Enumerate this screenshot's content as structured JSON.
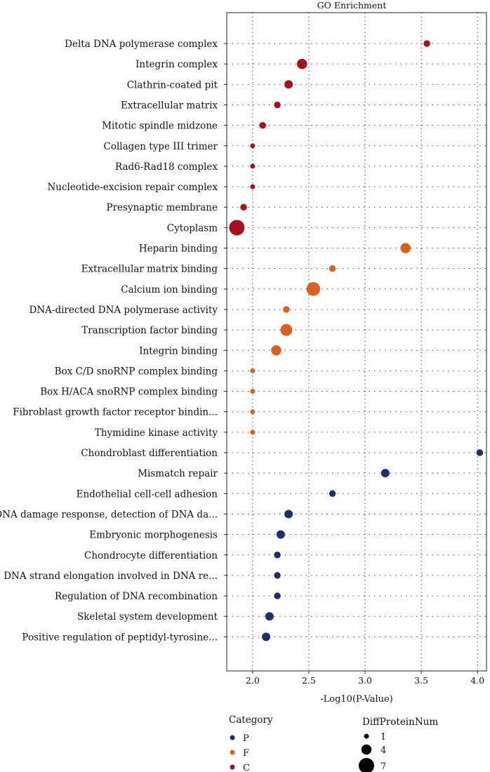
{
  "chart_data": {
    "type": "scatter",
    "title": "GO Enrichment",
    "xlabel": "-Log10(P-Value)",
    "ylabel": "",
    "xlim": [
      1.77,
      4.08
    ],
    "xticks": [
      2.0,
      2.5,
      3.0,
      3.5,
      4.0
    ],
    "xtick_labels": [
      "2.0",
      "2.5",
      "3.0",
      "3.5",
      "4.0"
    ],
    "grid": true,
    "colors": {
      "P": "#1a2f6b",
      "F": "#d9621f",
      "C": "#a5121e"
    },
    "terms": [
      {
        "label": "Delta DNA polymerase complex",
        "category": "C",
        "x": 3.55,
        "size": 2
      },
      {
        "label": "Integrin complex",
        "category": "C",
        "x": 2.44,
        "size": 4
      },
      {
        "label": "Clathrin-coated pit",
        "category": "C",
        "x": 2.32,
        "size": 3
      },
      {
        "label": "Extracellular matrix",
        "category": "C",
        "x": 2.22,
        "size": 2
      },
      {
        "label": "Mitotic spindle midzone",
        "category": "C",
        "x": 2.09,
        "size": 2
      },
      {
        "label": "Collagen type III trimer",
        "category": "C",
        "x": 2.0,
        "size": 1
      },
      {
        "label": "Rad6-Rad18 complex",
        "category": "C",
        "x": 2.0,
        "size": 1
      },
      {
        "label": "Nucleotide-excision repair complex",
        "category": "C",
        "x": 2.0,
        "size": 1
      },
      {
        "label": "Presynaptic membrane",
        "category": "C",
        "x": 1.92,
        "size": 2
      },
      {
        "label": "Cytoplasm",
        "category": "C",
        "x": 1.86,
        "size": 7
      },
      {
        "label": "Heparin binding",
        "category": "F",
        "x": 3.36,
        "size": 4
      },
      {
        "label": "Extracellular matrix binding",
        "category": "F",
        "x": 2.71,
        "size": 2
      },
      {
        "label": "Calcium ion binding",
        "category": "F",
        "x": 2.54,
        "size": 6
      },
      {
        "label": "DNA-directed DNA polymerase activity",
        "category": "F",
        "x": 2.3,
        "size": 2
      },
      {
        "label": "Transcription factor binding",
        "category": "F",
        "x": 2.3,
        "size": 5
      },
      {
        "label": "Integrin binding",
        "category": "F",
        "x": 2.21,
        "size": 4
      },
      {
        "label": "Box C/D snoRNP complex binding",
        "category": "F",
        "x": 2.0,
        "size": 1
      },
      {
        "label": "Box H/ACA snoRNP complex binding",
        "category": "F",
        "x": 2.0,
        "size": 1
      },
      {
        "label": "Fibroblast growth factor receptor bindin...",
        "category": "F",
        "x": 2.0,
        "size": 1
      },
      {
        "label": "Thymidine kinase activity",
        "category": "F",
        "x": 2.0,
        "size": 1
      },
      {
        "label": "Chondroblast differentiation",
        "category": "P",
        "x": 4.02,
        "size": 2
      },
      {
        "label": "Mismatch repair",
        "category": "P",
        "x": 3.18,
        "size": 3
      },
      {
        "label": "Endothelial cell-cell adhesion",
        "category": "P",
        "x": 2.71,
        "size": 2
      },
      {
        "label": "DNA damage response, detection of DNA da...",
        "category": "P",
        "x": 2.32,
        "size": 3
      },
      {
        "label": "Embryonic morphogenesis",
        "category": "P",
        "x": 2.25,
        "size": 3
      },
      {
        "label": "Chondrocyte differentiation",
        "category": "P",
        "x": 2.22,
        "size": 2
      },
      {
        "label": "DNA strand elongation involved in DNA re...",
        "category": "P",
        "x": 2.22,
        "size": 2
      },
      {
        "label": "Regulation of DNA recombination",
        "category": "P",
        "x": 2.22,
        "size": 2
      },
      {
        "label": "Skeletal system development",
        "category": "P",
        "x": 2.15,
        "size": 3
      },
      {
        "label": "Positive regulation of peptidyl-tyrosine...",
        "category": "P",
        "x": 2.12,
        "size": 3
      }
    ],
    "legend_category": {
      "title": "Category",
      "items": [
        {
          "key": "P",
          "label": "P"
        },
        {
          "key": "F",
          "label": "F"
        },
        {
          "key": "C",
          "label": "C"
        }
      ]
    },
    "legend_size": {
      "title": "DiffProteinNum",
      "items": [
        {
          "size": 1,
          "label": "1"
        },
        {
          "size": 4,
          "label": "4"
        },
        {
          "size": 7,
          "label": "7"
        }
      ]
    }
  }
}
